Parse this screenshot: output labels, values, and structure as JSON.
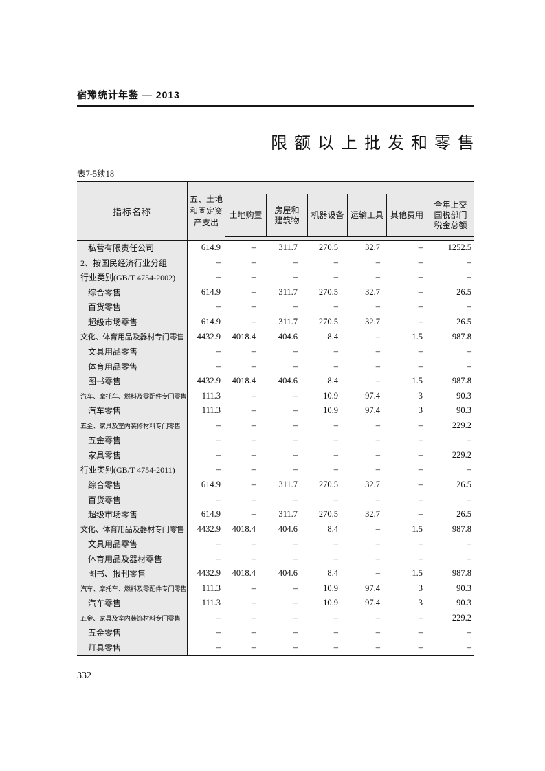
{
  "page": {
    "running_header": "宿豫统计年鉴 — 2013",
    "title": "限额以上批发和零售",
    "table_caption": "表7-5续18",
    "page_number": "332"
  },
  "table": {
    "header": {
      "indicator": "指标名称",
      "land_fixed_assets": [
        "五、土地",
        "和固定资",
        "产支出"
      ],
      "subcols": [
        [
          "土地购置"
        ],
        [
          "房屋和",
          "建筑物"
        ],
        [
          "机器设备"
        ],
        [
          "运输工具"
        ],
        [
          "其他费用"
        ],
        [
          "全年上交",
          "国税部门",
          "税金总额"
        ]
      ]
    },
    "rows": [
      {
        "label": "私营有限责任公司",
        "indent": 1,
        "values": [
          "614.9",
          "–",
          "311.7",
          "270.5",
          "32.7",
          "–",
          "1252.5"
        ]
      },
      {
        "label": "2、按国民经济行业分组",
        "indent": 0,
        "values": [
          "–",
          "–",
          "–",
          "–",
          "–",
          "–",
          "–"
        ]
      },
      {
        "label": "行业类别(GB/T 4754-2002)",
        "indent": 0,
        "values": [
          "–",
          "–",
          "–",
          "–",
          "–",
          "–",
          "–"
        ]
      },
      {
        "label": "综合零售",
        "indent": 1,
        "values": [
          "614.9",
          "–",
          "311.7",
          "270.5",
          "32.7",
          "–",
          "26.5"
        ]
      },
      {
        "label": "百货零售",
        "indent": 1,
        "values": [
          "–",
          "–",
          "–",
          "–",
          "–",
          "–",
          "–"
        ]
      },
      {
        "label": "超级市场零售",
        "indent": 1,
        "values": [
          "614.9",
          "–",
          "311.7",
          "270.5",
          "32.7",
          "–",
          "26.5"
        ]
      },
      {
        "label": "文化、体育用品及器材专门零售",
        "indent": 0,
        "values": [
          "4432.9",
          "4018.4",
          "404.6",
          "8.4",
          "–",
          "1.5",
          "987.8"
        ]
      },
      {
        "label": "文具用品零售",
        "indent": 1,
        "values": [
          "–",
          "–",
          "–",
          "–",
          "–",
          "–",
          "–"
        ]
      },
      {
        "label": "体育用品零售",
        "indent": 1,
        "values": [
          "–",
          "–",
          "–",
          "–",
          "–",
          "–",
          "–"
        ]
      },
      {
        "label": "图书零售",
        "indent": 1,
        "values": [
          "4432.9",
          "4018.4",
          "404.6",
          "8.4",
          "–",
          "1.5",
          "987.8"
        ]
      },
      {
        "label": "汽车、摩托车、燃料及零配件专门零售",
        "indent": 0,
        "values": [
          "111.3",
          "–",
          "–",
          "10.9",
          "97.4",
          "3",
          "90.3"
        ]
      },
      {
        "label": "汽车零售",
        "indent": 1,
        "values": [
          "111.3",
          "–",
          "–",
          "10.9",
          "97.4",
          "3",
          "90.3"
        ]
      },
      {
        "label": "五金、家具及室内装修材料专门零售",
        "indent": 0,
        "values": [
          "–",
          "–",
          "–",
          "–",
          "–",
          "–",
          "229.2"
        ]
      },
      {
        "label": "五金零售",
        "indent": 1,
        "values": [
          "–",
          "–",
          "–",
          "–",
          "–",
          "–",
          "–"
        ]
      },
      {
        "label": "家具零售",
        "indent": 1,
        "values": [
          "–",
          "–",
          "–",
          "–",
          "–",
          "–",
          "229.2"
        ]
      },
      {
        "label": "行业类别(GB/T 4754-2011)",
        "indent": 0,
        "values": [
          "–",
          "–",
          "–",
          "–",
          "–",
          "–",
          "–"
        ]
      },
      {
        "label": "综合零售",
        "indent": 1,
        "values": [
          "614.9",
          "–",
          "311.7",
          "270.5",
          "32.7",
          "–",
          "26.5"
        ]
      },
      {
        "label": "百货零售",
        "indent": 1,
        "values": [
          "–",
          "–",
          "–",
          "–",
          "–",
          "–",
          "–"
        ]
      },
      {
        "label": "超级市场零售",
        "indent": 1,
        "values": [
          "614.9",
          "–",
          "311.7",
          "270.5",
          "32.7",
          "–",
          "26.5"
        ]
      },
      {
        "label": "文化、体育用品及器材专门零售",
        "indent": 0,
        "values": [
          "4432.9",
          "4018.4",
          "404.6",
          "8.4",
          "–",
          "1.5",
          "987.8"
        ]
      },
      {
        "label": "文具用品零售",
        "indent": 1,
        "values": [
          "–",
          "–",
          "–",
          "–",
          "–",
          "–",
          "–"
        ]
      },
      {
        "label": "体育用品及器材零售",
        "indent": 1,
        "values": [
          "–",
          "–",
          "–",
          "–",
          "–",
          "–",
          "–"
        ]
      },
      {
        "label": "图书、报刊零售",
        "indent": 1,
        "values": [
          "4432.9",
          "4018.4",
          "404.6",
          "8.4",
          "–",
          "1.5",
          "987.8"
        ]
      },
      {
        "label": "汽车、摩托车、燃料及零配件专门零售",
        "indent": 0,
        "values": [
          "111.3",
          "–",
          "–",
          "10.9",
          "97.4",
          "3",
          "90.3"
        ]
      },
      {
        "label": "汽车零售",
        "indent": 1,
        "values": [
          "111.3",
          "–",
          "–",
          "10.9",
          "97.4",
          "3",
          "90.3"
        ]
      },
      {
        "label": "五金、家具及室内装饰材料专门零售",
        "indent": 0,
        "values": [
          "–",
          "–",
          "–",
          "–",
          "–",
          "–",
          "229.2"
        ]
      },
      {
        "label": "五金零售",
        "indent": 1,
        "values": [
          "–",
          "–",
          "–",
          "–",
          "–",
          "–",
          "–"
        ]
      },
      {
        "label": "灯具零售",
        "indent": 1,
        "values": [
          "–",
          "–",
          "–",
          "–",
          "–",
          "–",
          "–"
        ]
      }
    ]
  },
  "colors": {
    "header_shading": "#e9e9e9",
    "rule": "#161616",
    "text": "#111111"
  }
}
